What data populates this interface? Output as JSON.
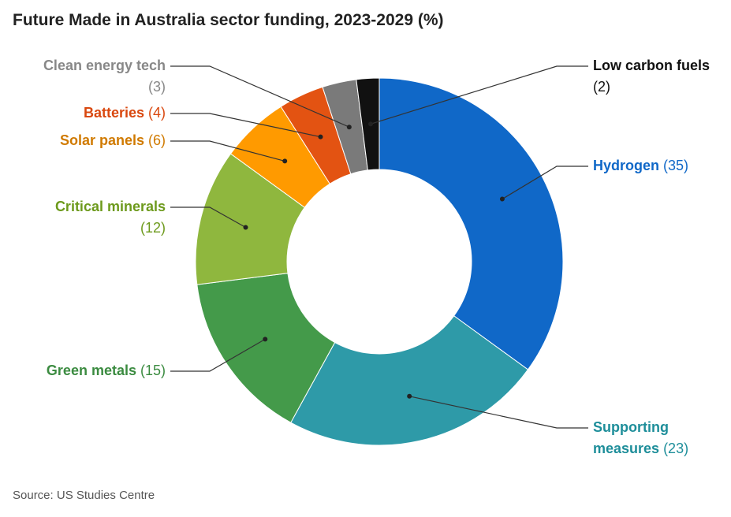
{
  "title": "Future Made in Australia sector funding, 2023-2029 (%)",
  "source": "Source: US Studies Centre",
  "chart_data": {
    "type": "pie",
    "donut": true,
    "title": "Future Made in Australia sector funding, 2023-2029 (%)",
    "slices": [
      {
        "label": "Hydrogen",
        "label_lines": [
          "Hydrogen"
        ],
        "value": 35,
        "color": "#1068c8",
        "text_color": "#1068c8"
      },
      {
        "label": "Supporting measures",
        "label_lines": [
          "Supporting",
          "measures"
        ],
        "value": 23,
        "color": "#2e9aa8",
        "text_color": "#1e8e9a"
      },
      {
        "label": "Green metals",
        "label_lines": [
          "Green metals"
        ],
        "value": 15,
        "color": "#449a4a",
        "text_color": "#3b8b40"
      },
      {
        "label": "Critical minerals",
        "label_lines": [
          "Critical minerals"
        ],
        "value": 12,
        "color": "#8fb73e",
        "text_color": "#6d9a1c"
      },
      {
        "label": "Solar panels",
        "label_lines": [
          "Solar panels"
        ],
        "value": 6,
        "color": "#ff9a00",
        "text_color": "#d07a00"
      },
      {
        "label": "Batteries",
        "label_lines": [
          "Batteries"
        ],
        "value": 4,
        "color": "#e35312",
        "text_color": "#d9480f"
      },
      {
        "label": "Clean energy tech",
        "label_lines": [
          "Clean energy tech"
        ],
        "value": 3,
        "color": "#7a7a7a",
        "text_color": "#888888"
      },
      {
        "label": "Low carbon fuels",
        "label_lines": [
          "Low carbon fuels"
        ],
        "value": 2,
        "color": "#111111",
        "text_color": "#111111"
      }
    ]
  }
}
